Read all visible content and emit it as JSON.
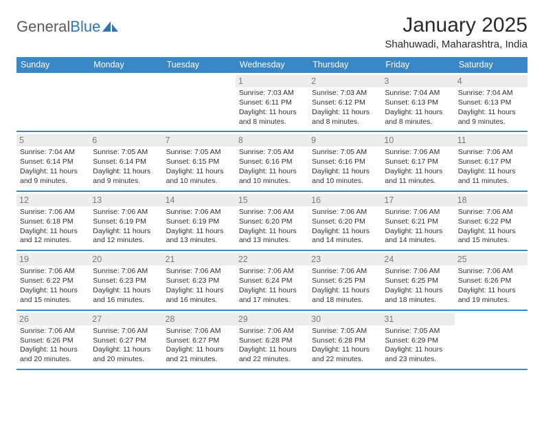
{
  "brand": {
    "text_gray": "General",
    "text_blue": "Blue",
    "icon_color": "#2e75b6"
  },
  "header": {
    "month_title": "January 2025",
    "location": "Shahuwadi, Maharashtra, India"
  },
  "colors": {
    "header_bar": "#3a87c8",
    "header_text": "#ffffff",
    "daynum_bg": "#ededed",
    "daynum_text": "#7a7a7a",
    "row_border": "#3a87c8",
    "body_text": "#2f2f2f",
    "page_bg": "#ffffff"
  },
  "weekdays": [
    "Sunday",
    "Monday",
    "Tuesday",
    "Wednesday",
    "Thursday",
    "Friday",
    "Saturday"
  ],
  "weeks": [
    [
      null,
      null,
      null,
      {
        "n": "1",
        "sunrise": "7:03 AM",
        "sunset": "6:11 PM",
        "daylight": "11 hours and 8 minutes."
      },
      {
        "n": "2",
        "sunrise": "7:03 AM",
        "sunset": "6:12 PM",
        "daylight": "11 hours and 8 minutes."
      },
      {
        "n": "3",
        "sunrise": "7:04 AM",
        "sunset": "6:13 PM",
        "daylight": "11 hours and 8 minutes."
      },
      {
        "n": "4",
        "sunrise": "7:04 AM",
        "sunset": "6:13 PM",
        "daylight": "11 hours and 9 minutes."
      }
    ],
    [
      {
        "n": "5",
        "sunrise": "7:04 AM",
        "sunset": "6:14 PM",
        "daylight": "11 hours and 9 minutes."
      },
      {
        "n": "6",
        "sunrise": "7:05 AM",
        "sunset": "6:14 PM",
        "daylight": "11 hours and 9 minutes."
      },
      {
        "n": "7",
        "sunrise": "7:05 AM",
        "sunset": "6:15 PM",
        "daylight": "11 hours and 10 minutes."
      },
      {
        "n": "8",
        "sunrise": "7:05 AM",
        "sunset": "6:16 PM",
        "daylight": "11 hours and 10 minutes."
      },
      {
        "n": "9",
        "sunrise": "7:05 AM",
        "sunset": "6:16 PM",
        "daylight": "11 hours and 10 minutes."
      },
      {
        "n": "10",
        "sunrise": "7:06 AM",
        "sunset": "6:17 PM",
        "daylight": "11 hours and 11 minutes."
      },
      {
        "n": "11",
        "sunrise": "7:06 AM",
        "sunset": "6:17 PM",
        "daylight": "11 hours and 11 minutes."
      }
    ],
    [
      {
        "n": "12",
        "sunrise": "7:06 AM",
        "sunset": "6:18 PM",
        "daylight": "11 hours and 12 minutes."
      },
      {
        "n": "13",
        "sunrise": "7:06 AM",
        "sunset": "6:19 PM",
        "daylight": "11 hours and 12 minutes."
      },
      {
        "n": "14",
        "sunrise": "7:06 AM",
        "sunset": "6:19 PM",
        "daylight": "11 hours and 13 minutes."
      },
      {
        "n": "15",
        "sunrise": "7:06 AM",
        "sunset": "6:20 PM",
        "daylight": "11 hours and 13 minutes."
      },
      {
        "n": "16",
        "sunrise": "7:06 AM",
        "sunset": "6:20 PM",
        "daylight": "11 hours and 14 minutes."
      },
      {
        "n": "17",
        "sunrise": "7:06 AM",
        "sunset": "6:21 PM",
        "daylight": "11 hours and 14 minutes."
      },
      {
        "n": "18",
        "sunrise": "7:06 AM",
        "sunset": "6:22 PM",
        "daylight": "11 hours and 15 minutes."
      }
    ],
    [
      {
        "n": "19",
        "sunrise": "7:06 AM",
        "sunset": "6:22 PM",
        "daylight": "11 hours and 15 minutes."
      },
      {
        "n": "20",
        "sunrise": "7:06 AM",
        "sunset": "6:23 PM",
        "daylight": "11 hours and 16 minutes."
      },
      {
        "n": "21",
        "sunrise": "7:06 AM",
        "sunset": "6:23 PM",
        "daylight": "11 hours and 16 minutes."
      },
      {
        "n": "22",
        "sunrise": "7:06 AM",
        "sunset": "6:24 PM",
        "daylight": "11 hours and 17 minutes."
      },
      {
        "n": "23",
        "sunrise": "7:06 AM",
        "sunset": "6:25 PM",
        "daylight": "11 hours and 18 minutes."
      },
      {
        "n": "24",
        "sunrise": "7:06 AM",
        "sunset": "6:25 PM",
        "daylight": "11 hours and 18 minutes."
      },
      {
        "n": "25",
        "sunrise": "7:06 AM",
        "sunset": "6:26 PM",
        "daylight": "11 hours and 19 minutes."
      }
    ],
    [
      {
        "n": "26",
        "sunrise": "7:06 AM",
        "sunset": "6:26 PM",
        "daylight": "11 hours and 20 minutes."
      },
      {
        "n": "27",
        "sunrise": "7:06 AM",
        "sunset": "6:27 PM",
        "daylight": "11 hours and 20 minutes."
      },
      {
        "n": "28",
        "sunrise": "7:06 AM",
        "sunset": "6:27 PM",
        "daylight": "11 hours and 21 minutes."
      },
      {
        "n": "29",
        "sunrise": "7:06 AM",
        "sunset": "6:28 PM",
        "daylight": "11 hours and 22 minutes."
      },
      {
        "n": "30",
        "sunrise": "7:05 AM",
        "sunset": "6:28 PM",
        "daylight": "11 hours and 22 minutes."
      },
      {
        "n": "31",
        "sunrise": "7:05 AM",
        "sunset": "6:29 PM",
        "daylight": "11 hours and 23 minutes."
      },
      null
    ]
  ],
  "labels": {
    "sunrise": "Sunrise:",
    "sunset": "Sunset:",
    "daylight": "Daylight:"
  }
}
